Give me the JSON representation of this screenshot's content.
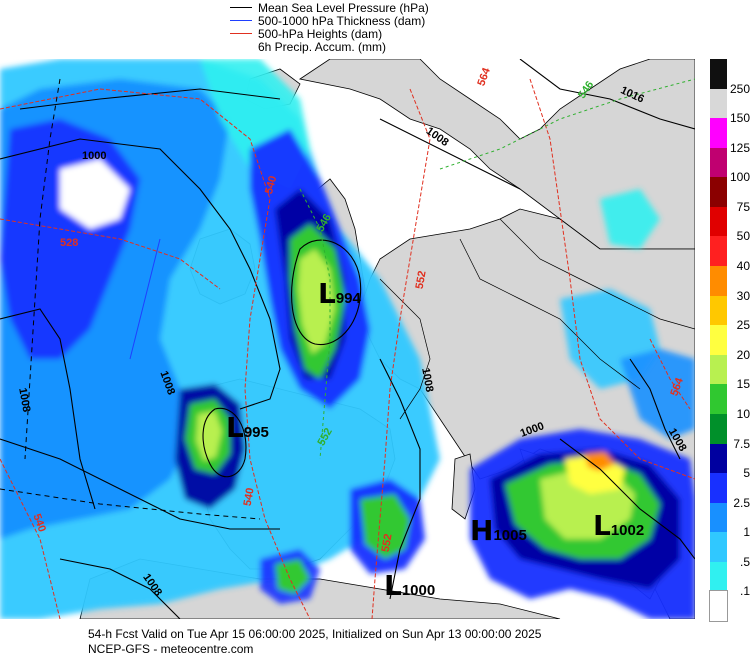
{
  "legend": [
    {
      "text": "Mean Sea Level Pressure (hPa)",
      "color": "#000000"
    },
    {
      "text": "500-1000 hPa Thickness (dam)",
      "color": "#1f3fff"
    },
    {
      "text": "500-hPa Heights (dam)",
      "color": "#e03020"
    },
    {
      "text": "6h Precip. Accum. (mm)",
      "color": null
    }
  ],
  "colorbar": [
    {
      "label": "250",
      "color": "#101010"
    },
    {
      "label": "150",
      "color": "#d8d8d8"
    },
    {
      "label": "125",
      "color": "#ff00ff"
    },
    {
      "label": "100",
      "color": "#c00070"
    },
    {
      "label": "75",
      "color": "#8b0000"
    },
    {
      "label": "50",
      "color": "#e00000"
    },
    {
      "label": "40",
      "color": "#ff2020"
    },
    {
      "label": "30",
      "color": "#ff8c00"
    },
    {
      "label": "25",
      "color": "#ffc800"
    },
    {
      "label": "20",
      "color": "#ffff40"
    },
    {
      "label": "15",
      "color": "#b8f050"
    },
    {
      "label": "10",
      "color": "#30c830"
    },
    {
      "label": "7.5",
      "color": "#00902a"
    },
    {
      "label": "5",
      "color": "#0000a0"
    },
    {
      "label": "2.5",
      "color": "#1830ff"
    },
    {
      "label": "1",
      "color": "#1890ff"
    },
    {
      "label": ".5",
      "color": "#30c8ff"
    },
    {
      "label": ".1",
      "color": "#30f0f0"
    },
    {
      "label": "",
      "color": "#ffffff"
    }
  ],
  "pressure_systems": [
    {
      "type": "L",
      "value": "994"
    },
    {
      "type": "L",
      "value": "995"
    },
    {
      "type": "H",
      "value": "1005"
    },
    {
      "type": "L",
      "value": "1002"
    },
    {
      "type": "L",
      "value": "1000"
    }
  ],
  "contour_labels": {
    "mslp": [
      "1000",
      "1008",
      "1016",
      "1008",
      "1008",
      "1008",
      "1008",
      "1008",
      "1000"
    ],
    "heights": [
      "528",
      "540",
      "540",
      "552",
      "552",
      "540",
      "564",
      "564"
    ],
    "thickness": [
      "546",
      "546",
      "552"
    ]
  },
  "footer": {
    "line1": "54-h Fcst Valid on Tue Apr 15 06:00:00 2025, Initialized on Sun Apr 13 00:00:00 2025",
    "line2": "NCEP-GFS  - meteocentre.com"
  },
  "colors": {
    "land": "#d6d6d6",
    "sea": "#ffffff",
    "mslp": "#000000",
    "heights": "#e03020",
    "thickness_green": "#30b030"
  }
}
